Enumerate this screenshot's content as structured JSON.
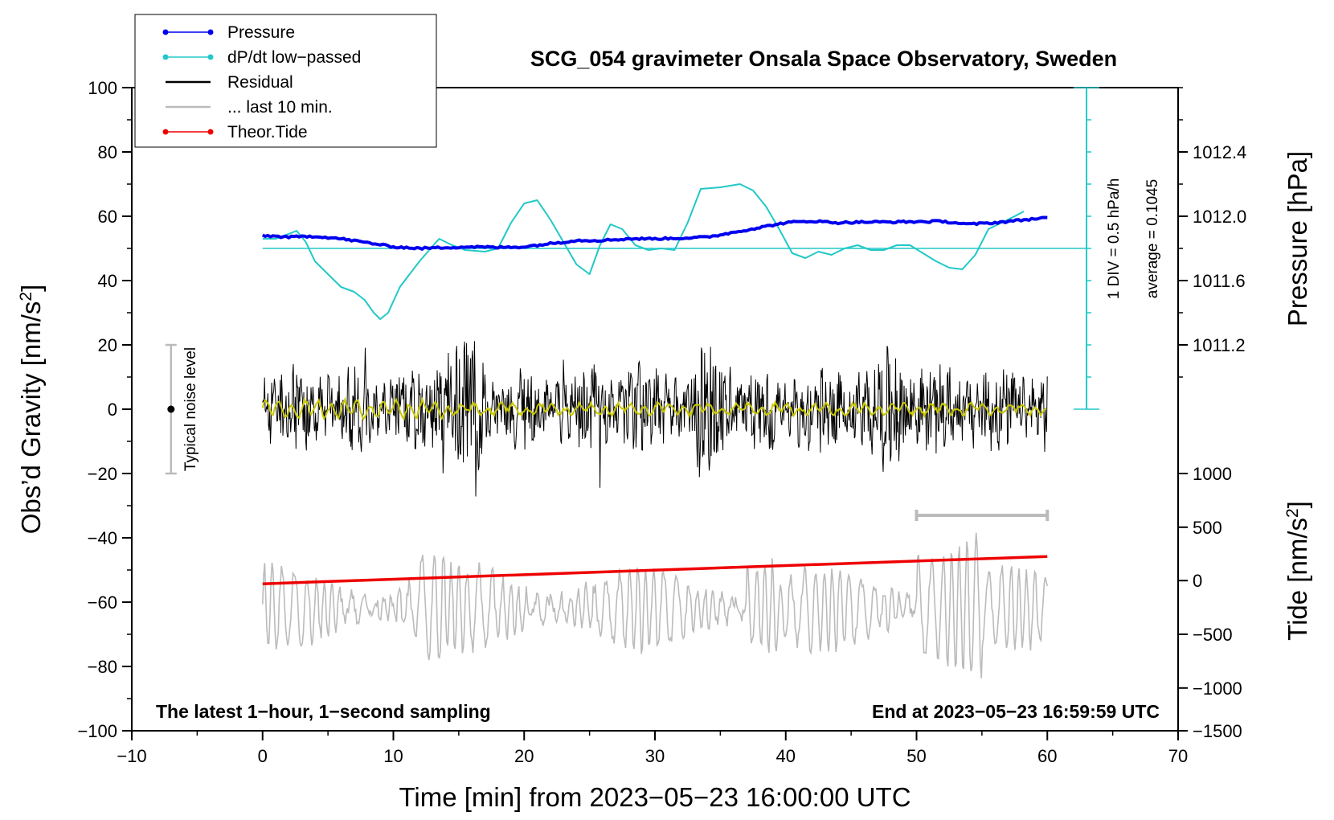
{
  "chart_data": {
    "type": "line",
    "title": "SCG_054 gravimeter Onsala Space Observatory, Sweden",
    "xlabel": "Time [min] from 2023−05−23 16:00:00 UTC",
    "ylabel_left": "Obs’d Gravity [nm/s²]",
    "ylabel_left_base": "Obs’d Gravity [nm/s",
    "ylabel_left_sup": "2",
    "ylabel_left_close": "]",
    "ylabel_right_pressure": "Pressure [hPa]",
    "ylabel_right_tide": "Tide [nm/s²]",
    "ylabel_right_tide_base": "Tide [nm/s",
    "ylabel_right_tide_sup": "2",
    "ylabel_right_tide_close": "]",
    "xlim": [
      -10,
      70
    ],
    "ylim": [
      -100,
      100
    ],
    "x_ticks": [
      -10,
      0,
      10,
      20,
      30,
      40,
      50,
      60,
      70
    ],
    "x_tick_labels": [
      "−10",
      "0",
      "10",
      "20",
      "30",
      "40",
      "50",
      "60",
      "70"
    ],
    "y_ticks": [
      -100,
      -80,
      -60,
      -40,
      -20,
      0,
      20,
      40,
      60,
      80,
      100
    ],
    "y_tick_labels": [
      "−100",
      "−80",
      "−60",
      "−40",
      "−20",
      "0",
      "20",
      "40",
      "60",
      "80",
      "100"
    ],
    "pressure_axis": {
      "ticks": [
        1011.2,
        1011.6,
        1012.0,
        1012.4
      ],
      "tick_labels": [
        "1011.2",
        "1011.6",
        "1012.0",
        "1012.4"
      ],
      "gravity_equivalent": [
        20,
        40,
        60,
        80
      ]
    },
    "tide_axis": {
      "ticks": [
        1000,
        500,
        0,
        -500,
        -1000,
        -1500
      ],
      "tick_labels": [
        "1000",
        "500",
        "0",
        "−500",
        "−1000",
        "−1500"
      ],
      "gravity_equivalent": [
        -20,
        -36.7,
        -53.3,
        -70,
        -86.7,
        -100
      ]
    },
    "legend": [
      {
        "label": "Pressure",
        "color": "#0000ee",
        "marker": "dot"
      },
      {
        "label": "dP/dt low−passed",
        "color": "#22c8c8",
        "marker": "dot"
      },
      {
        "label": "Residual",
        "color": "#000000",
        "marker": "none"
      },
      {
        "label": "... last 10 min.",
        "color": "#bbbbbb",
        "marker": "none"
      },
      {
        "label": "Theor.Tide",
        "color": "#ee0000",
        "marker": "dot"
      }
    ],
    "series": [
      {
        "name": "Pressure",
        "color": "#0000ee",
        "x": [
          0,
          2,
          4,
          6,
          8,
          10,
          12,
          14,
          16,
          18,
          20,
          22,
          24,
          26,
          28,
          30,
          32,
          34,
          36,
          38,
          40,
          42,
          44,
          46,
          48,
          50,
          52,
          54,
          56,
          58,
          60
        ],
        "y": [
          54,
          53.5,
          53.8,
          53,
          51.8,
          50.5,
          50,
          50.3,
          50.5,
          50.3,
          50.5,
          51.5,
          52.5,
          52.5,
          53,
          53,
          53.2,
          53.5,
          55,
          56.5,
          58,
          58.5,
          58,
          58.2,
          58.2,
          58.3,
          58.4,
          57.5,
          58,
          58.8,
          59.6
        ]
      },
      {
        "name": "dP/dt low-passed",
        "color": "#22c8c8",
        "x": [
          0,
          1,
          2,
          2.6,
          3.3,
          4,
          5,
          6,
          7,
          7.8,
          8.5,
          9,
          9.6,
          10.5,
          12,
          13.5,
          14.5,
          15.5,
          17,
          18,
          19,
          20,
          21,
          22,
          23,
          24,
          25,
          25.8,
          26.6,
          27.5,
          28.5,
          29.5,
          30.5,
          31.5,
          32.5,
          33.5,
          35,
          36.5,
          37.5,
          38.5,
          39.5,
          40.5,
          41.5,
          42.5,
          43.5,
          44.5,
          45.5,
          46.5,
          47.5,
          48.5,
          49.5,
          50.5,
          51.5,
          52.5,
          53.5,
          54.5,
          55.5,
          56.5,
          57.5,
          58.2
        ],
        "y": [
          53,
          53,
          54.5,
          55.5,
          52,
          46,
          42,
          38,
          36.5,
          34,
          30,
          28,
          30,
          38,
          46,
          53,
          51,
          49.5,
          49,
          50,
          58,
          64,
          65,
          59,
          52,
          45,
          42,
          51,
          57.5,
          56,
          51,
          49.5,
          50,
          49.5,
          58,
          68.5,
          69,
          70,
          68,
          63,
          56,
          48.5,
          47,
          49,
          48,
          50,
          51,
          49.5,
          49.5,
          51,
          51,
          48.5,
          46,
          44,
          43.5,
          48,
          56,
          58,
          60,
          61.5
        ]
      },
      {
        "name": "Theor.Tide",
        "color": "#ee0000",
        "x": [
          0,
          60
        ],
        "y": [
          -54.3,
          -45.8
        ]
      }
    ],
    "dpdt_average_line": 50,
    "annotations": {
      "noise_label": "Typical noise level",
      "noise_range": [
        -20,
        20
      ],
      "div_label": "1 DIV = 0.5 hPa/h",
      "average_label": "average = 0.1045",
      "left_note": "The latest 1−hour, 1−second sampling",
      "right_note": "End at 2023−05−23 16:59:59 UTC",
      "last10_range_x": [
        50,
        60
      ],
      "last10_range_y": -33
    }
  }
}
